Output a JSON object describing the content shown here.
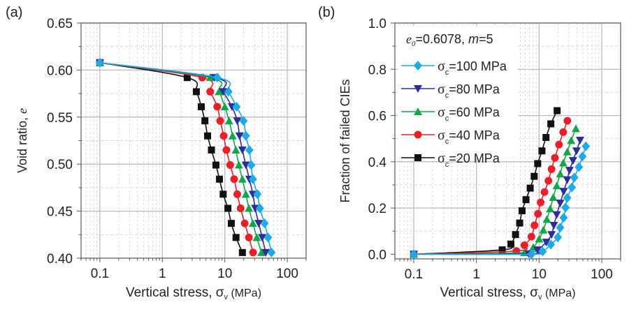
{
  "chart_data": [
    {
      "panel_label": "(a)",
      "type": "line",
      "title": "",
      "xlabel": "Vertical stress, σ",
      "xlabel_sub": "v",
      "xlabel_unit": " (MPa)",
      "ylabel": "Void ratio, ",
      "ylabel_italic": "e",
      "xscale": "log",
      "xlim": [
        0.05,
        200
      ],
      "ylim": [
        0.4,
        0.65
      ],
      "xticks": [
        0.1,
        1,
        10,
        100
      ],
      "xtick_labels": [
        "0.1",
        "1",
        "10",
        "100"
      ],
      "yticks": [
        0.4,
        0.45,
        0.5,
        0.55,
        0.6,
        0.65
      ],
      "ytick_labels": [
        "0.40",
        "0.45",
        "0.50",
        "0.55",
        "0.60",
        "0.65"
      ],
      "grid": true,
      "legend": null,
      "series": [
        {
          "name": "σc=20 MPa",
          "color": "#111111",
          "marker": "square",
          "x": [
            0.1,
            2.5,
            3.5,
            4.2,
            4.8,
            5.3,
            6.1,
            7.2,
            8.2,
            9.4,
            11.2,
            12.7,
            15.1,
            19.1
          ],
          "y": [
            0.6078,
            0.592,
            0.577,
            0.561,
            0.546,
            0.53,
            0.515,
            0.499,
            0.484,
            0.468,
            0.453,
            0.437,
            0.422,
            0.406
          ]
        },
        {
          "name": "σc=40 MPa",
          "color": "#e8202a",
          "marker": "circle",
          "x": [
            0.1,
            4.35,
            5.83,
            7.55,
            8.44,
            9.59,
            10.6,
            12.2,
            14.1,
            15.8,
            17.9,
            20.8,
            24.3,
            28.3
          ],
          "y": [
            0.6078,
            0.592,
            0.577,
            0.561,
            0.546,
            0.53,
            0.515,
            0.499,
            0.484,
            0.468,
            0.453,
            0.437,
            0.422,
            0.406
          ]
        },
        {
          "name": "σc=60 MPa",
          "color": "#12a64a",
          "marker": "triangle-up",
          "x": [
            0.1,
            5.83,
            8.07,
            10.0,
            11.7,
            13.3,
            15.0,
            16.8,
            19.1,
            21.7,
            24.3,
            28.1,
            32.5,
            38.6
          ],
          "y": [
            0.6078,
            0.592,
            0.577,
            0.561,
            0.546,
            0.53,
            0.515,
            0.499,
            0.484,
            0.468,
            0.453,
            0.437,
            0.422,
            0.406
          ]
        },
        {
          "name": "σc=80 MPa",
          "color": "#2b2d9a",
          "marker": "triangle-down",
          "x": [
            0.1,
            6.85,
            9.42,
            13.0,
            15.8,
            17.2,
            19.1,
            21.7,
            24.7,
            28.1,
            30.6,
            34.8,
            39.6,
            45.1
          ],
          "y": [
            0.6078,
            0.592,
            0.577,
            0.561,
            0.546,
            0.53,
            0.515,
            0.499,
            0.484,
            0.468,
            0.453,
            0.437,
            0.422,
            0.406
          ]
        },
        {
          "name": "σc=100 MPa",
          "color": "#1fa9e6",
          "marker": "diamond",
          "x": [
            0.1,
            7.55,
            11.4,
            15.4,
            19.9,
            21.7,
            24.7,
            26.4,
            28.1,
            33.3,
            36.4,
            43.2,
            49.1,
            55.8
          ],
          "y": [
            0.6078,
            0.592,
            0.577,
            0.561,
            0.546,
            0.53,
            0.515,
            0.499,
            0.484,
            0.468,
            0.453,
            0.437,
            0.422,
            0.406
          ]
        }
      ]
    },
    {
      "panel_label": "(b)",
      "type": "line",
      "title": "",
      "xlabel": "Vertical stress, σ",
      "xlabel_sub": "v",
      "xlabel_unit": " (MPa)",
      "ylabel": "Fraction of failed CIEs",
      "ylabel_italic": "",
      "xscale": "log",
      "xlim": [
        0.05,
        200
      ],
      "ylim": [
        -0.02,
        1.0
      ],
      "xticks": [
        0.1,
        1,
        10,
        100
      ],
      "xtick_labels": [
        "0.1",
        "1",
        "10",
        "100"
      ],
      "yticks": [
        0.0,
        0.2,
        0.4,
        0.6,
        0.8,
        1.0
      ],
      "ytick_labels": [
        "0.0",
        "0.2",
        "0.4",
        "0.6",
        "0.8",
        "1.0"
      ],
      "grid": true,
      "legend": {
        "placement": "top-left",
        "header_var": "e",
        "header_var_sub": "0",
        "header_rest": "=0.6078, ",
        "header_m": "m",
        "header_m_rest": "=5",
        "entries": [
          {
            "sym": "σ",
            "sub": "c",
            "text": "=100 MPa",
            "series_index": 4
          },
          {
            "sym": "σ",
            "sub": "c",
            "text": "=80 MPa",
            "series_index": 3
          },
          {
            "sym": "σ",
            "sub": "c",
            "text": "=60 MPa",
            "series_index": 2
          },
          {
            "sym": "σ",
            "sub": "c",
            "text": "=40 MPa",
            "series_index": 1
          },
          {
            "sym": "σ",
            "sub": "c",
            "text": "=20 MPa",
            "series_index": 0
          }
        ]
      },
      "series": [
        {
          "name": "σc=20 MPa",
          "color": "#111111",
          "marker": "square",
          "x": [
            0.1,
            2.58,
            3.55,
            4.21,
            4.9,
            5.35,
            6.18,
            7.21,
            8.35,
            9.5,
            11.1,
            12.9,
            15.4,
            19.4
          ],
          "y": [
            0.0,
            0.019,
            0.044,
            0.085,
            0.135,
            0.188,
            0.236,
            0.286,
            0.337,
            0.392,
            0.447,
            0.505,
            0.564,
            0.621
          ]
        },
        {
          "name": "σc=40 MPa",
          "color": "#e8202a",
          "marker": "circle",
          "x": [
            0.1,
            4.35,
            5.83,
            7.55,
            8.44,
            9.59,
            10.6,
            12.2,
            14.1,
            15.8,
            17.9,
            20.8,
            24.3,
            28.3
          ],
          "y": [
            0.0,
            0.014,
            0.039,
            0.076,
            0.125,
            0.175,
            0.224,
            0.269,
            0.318,
            0.368,
            0.417,
            0.474,
            0.528,
            0.577
          ]
        },
        {
          "name": "σc=60 MPa",
          "color": "#12a64a",
          "marker": "triangle-up",
          "x": [
            0.1,
            5.83,
            8.07,
            10.0,
            11.7,
            13.3,
            15.0,
            16.8,
            19.1,
            21.7,
            24.3,
            28.1,
            32.5,
            38.6
          ],
          "y": [
            0.0,
            0.007,
            0.03,
            0.066,
            0.105,
            0.151,
            0.196,
            0.246,
            0.296,
            0.347,
            0.395,
            0.443,
            0.492,
            0.543
          ]
        },
        {
          "name": "σc=80 MPa",
          "color": "#2b2d9a",
          "marker": "triangle-down",
          "x": [
            0.1,
            6.85,
            9.42,
            13.0,
            15.8,
            17.2,
            19.1,
            21.7,
            24.7,
            28.1,
            30.6,
            34.8,
            39.6,
            45.1
          ],
          "y": [
            0.0,
            0.002,
            0.019,
            0.052,
            0.085,
            0.125,
            0.171,
            0.221,
            0.272,
            0.322,
            0.363,
            0.405,
            0.447,
            0.493
          ]
        },
        {
          "name": "σc=100 MPa",
          "color": "#1fa9e6",
          "marker": "diamond",
          "x": [
            0.1,
            7.55,
            11.4,
            15.4,
            19.9,
            21.7,
            24.7,
            26.4,
            28.1,
            33.3,
            36.4,
            43.2,
            49.1,
            55.8
          ],
          "y": [
            0.0,
            0.0,
            0.012,
            0.042,
            0.073,
            0.115,
            0.158,
            0.202,
            0.244,
            0.289,
            0.332,
            0.377,
            0.423,
            0.467
          ]
        }
      ]
    }
  ]
}
